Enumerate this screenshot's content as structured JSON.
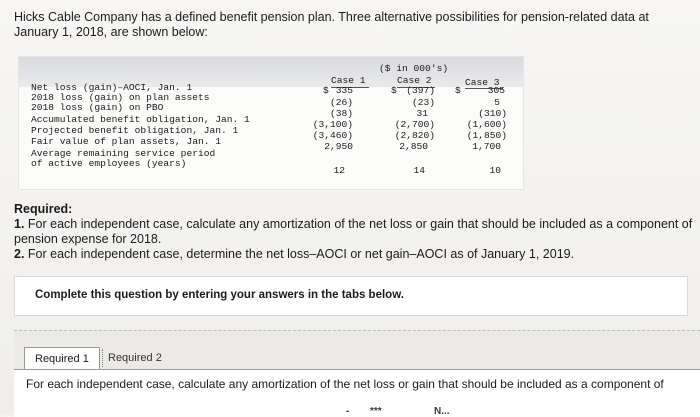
{
  "intro": "Hicks Cable Company has a defined benefit pension plan. Three alternative possibilities for pension-related data at January 1, 2018, are shown below:",
  "table": {
    "units": "($ in 000's)",
    "currency": "$",
    "columns": [
      "Case 1",
      "Case 2",
      "Case 3"
    ],
    "rows": [
      {
        "label": "Net loss (gain)–AOCI, Jan. 1",
        "values": [
          "335",
          "(397)",
          "305"
        ]
      },
      {
        "label": "2018 loss (gain) on plan assets",
        "values": [
          "(26)",
          "(23)",
          "5"
        ]
      },
      {
        "label": "2018 loss (gain) on PBO",
        "values": [
          "(38)",
          "31",
          "(310)"
        ]
      },
      {
        "label": "Accumulated benefit obligation, Jan. 1",
        "values": [
          "(3,100)",
          "(2,700)",
          "(1,600)"
        ]
      },
      {
        "label": "Projected benefit obligation, Jan. 1",
        "values": [
          "(3,460)",
          "(2,820)",
          "(1,850)"
        ]
      },
      {
        "label": "Fair value of plan assets, Jan. 1",
        "values": [
          "2,950",
          "2,850",
          "1,700"
        ]
      },
      {
        "label": "Average remaining service period",
        "label2": "of active employees (years)",
        "values": [
          "12",
          "14",
          "10"
        ]
      }
    ]
  },
  "required": {
    "heading": "Required:",
    "items": [
      {
        "num": "1.",
        "text": "For each independent case, calculate any amortization of the net loss or gain that should be included as a component of pension expense for 2018."
      },
      {
        "num": "2.",
        "text": "For each independent case, determine the net loss–AOCI or net gain–AOCI as of January 1, 2019."
      }
    ]
  },
  "instruction": "Complete this question by entering your answers in the tabs below.",
  "tabs": [
    "Required 1",
    "Required 2"
  ],
  "tab_content": "For each independent case, calculate any amortization of the net loss or gain that should be included as a component of",
  "cutoff": [
    "-",
    "***",
    "N..."
  ]
}
